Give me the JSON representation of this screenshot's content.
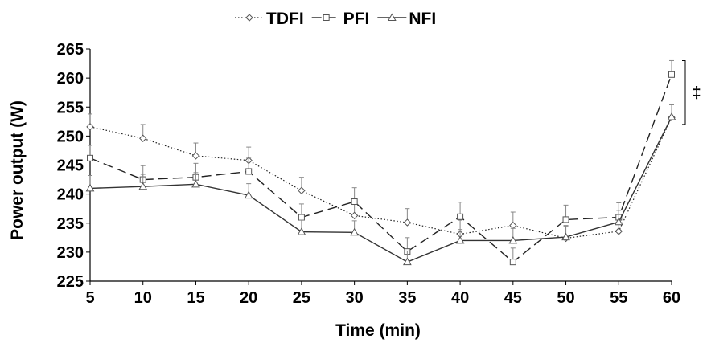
{
  "chart_data": {
    "type": "line",
    "xlabel": "Time (min)",
    "ylabel": "Power output (W)",
    "x": [
      5,
      10,
      15,
      20,
      25,
      30,
      35,
      40,
      45,
      50,
      55,
      60
    ],
    "xticks": [
      "5",
      "10",
      "15",
      "20",
      "25",
      "30",
      "35",
      "40",
      "45",
      "50",
      "55",
      "60"
    ],
    "yticks": [
      "225",
      "230",
      "235",
      "240",
      "245",
      "250",
      "255",
      "260",
      "265"
    ],
    "xlim": [
      5,
      60
    ],
    "ylim": [
      225,
      265
    ],
    "grid": false,
    "legend": "top-center",
    "series": [
      {
        "name": "TDFI",
        "marker": "diamond",
        "line_style": "dotted",
        "values": [
          251.6,
          249.6,
          246.6,
          245.8,
          240.6,
          236.3,
          235.1,
          233.1,
          234.6,
          232.4,
          233.6,
          253.2
        ],
        "errors": [
          2.2,
          2.4,
          2.2,
          2.3,
          2.3,
          2.3,
          2.4,
          2.4,
          2.3,
          2.1,
          2.2,
          2.2
        ]
      },
      {
        "name": "PFI",
        "marker": "square",
        "line_style": "dashed",
        "values": [
          246.2,
          242.5,
          242.9,
          243.9,
          236.0,
          238.7,
          230.1,
          236.1,
          228.3,
          235.6,
          236.0,
          260.6
        ],
        "errors": [
          2.2,
          2.4,
          2.4,
          2.3,
          2.3,
          2.4,
          2.4,
          2.5,
          2.4,
          2.5,
          2.5,
          2.4
        ]
      },
      {
        "name": "NFI",
        "marker": "triangle",
        "line_style": "solid",
        "values": [
          241.0,
          241.3,
          241.7,
          239.8,
          233.5,
          233.4,
          228.3,
          232.0,
          232.0,
          232.6,
          235.2,
          253.3
        ],
        "errors": [
          2.2,
          2.1,
          2.0,
          2.0,
          2.0,
          2.0,
          1.9,
          1.9,
          2.1,
          2.0,
          2.0,
          2.1
        ]
      }
    ],
    "annotation": {
      "text": "‡",
      "from": 252,
      "to": 263
    }
  }
}
